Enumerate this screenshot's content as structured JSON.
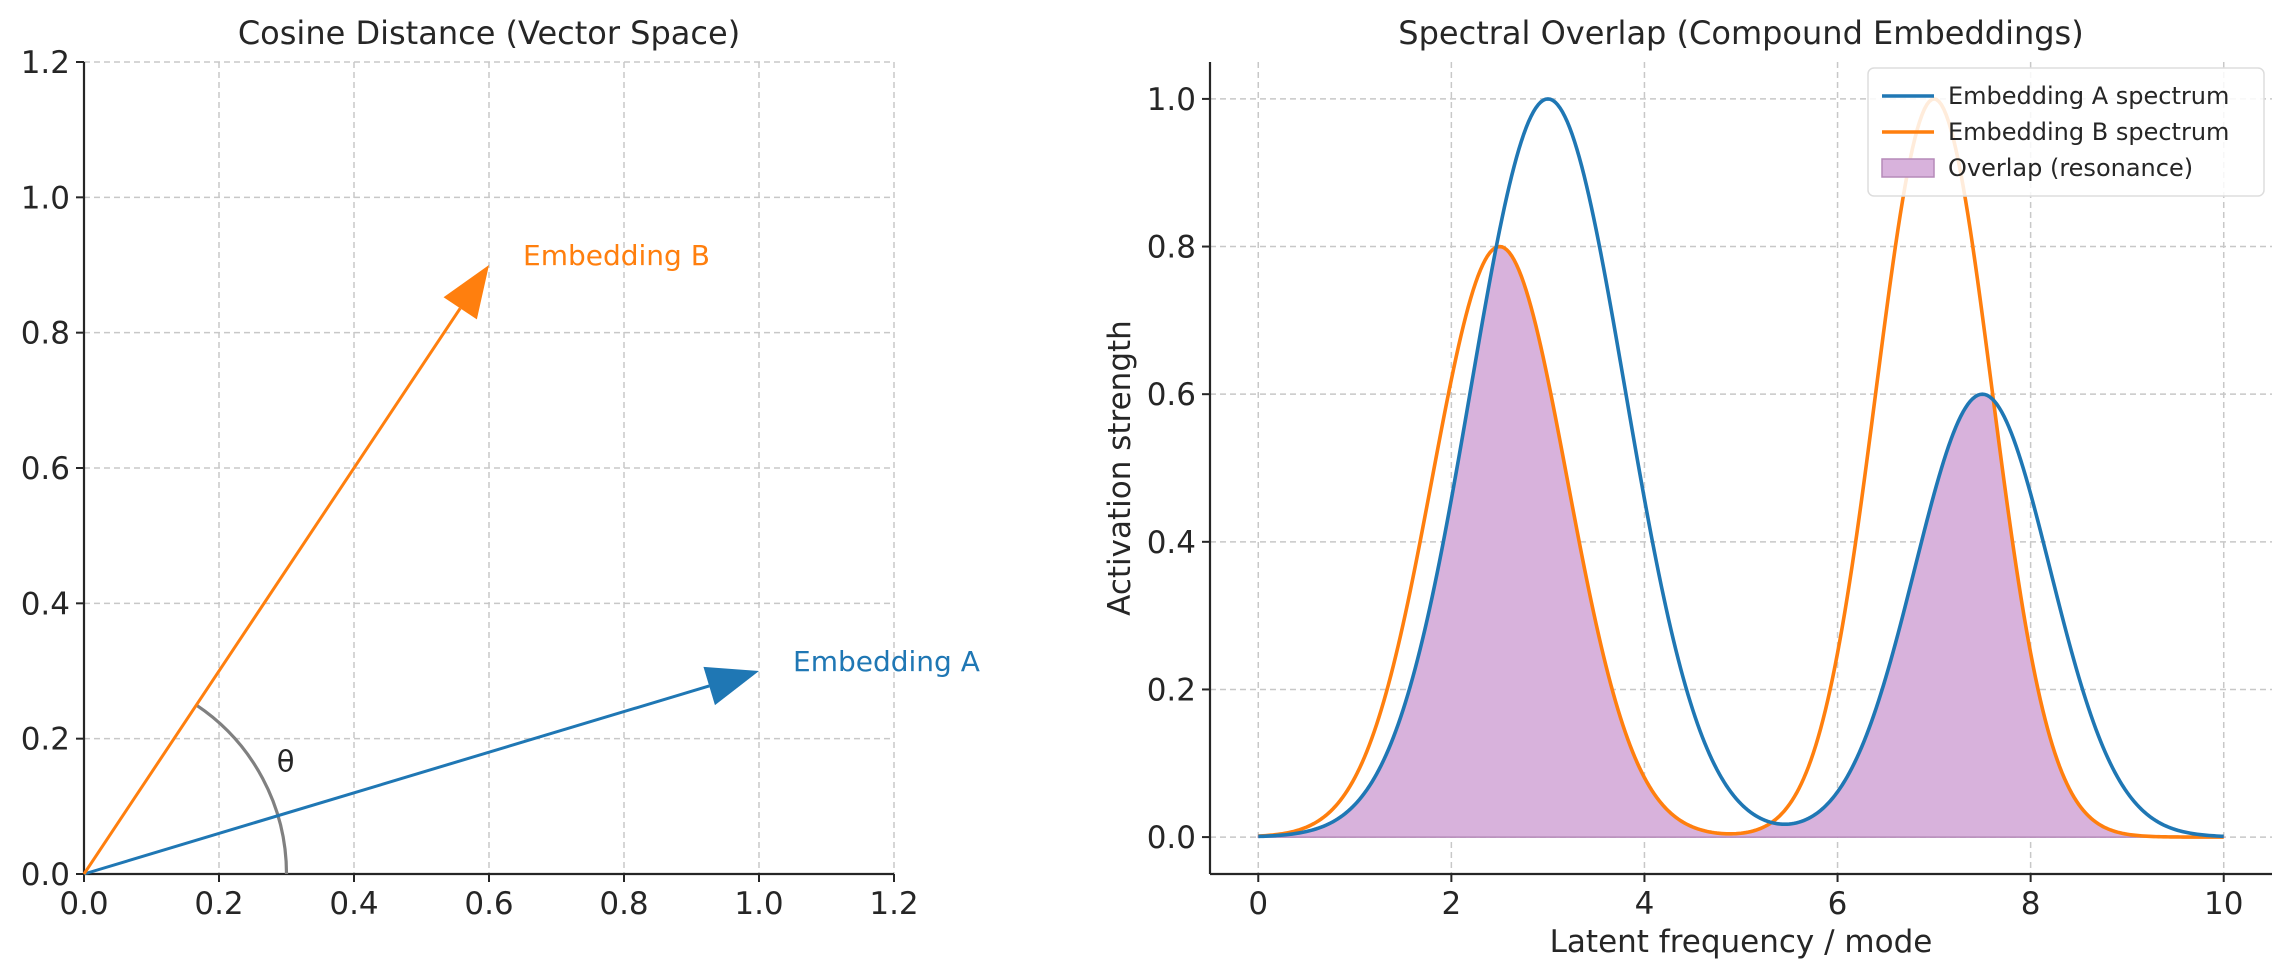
{
  "chart_data": [
    {
      "type": "line",
      "title": "Cosine Distance (Vector Space)",
      "xlabel": "",
      "ylabel": "",
      "xlim": [
        0,
        1.2
      ],
      "ylim": [
        0,
        1.2
      ],
      "xticks": [
        "0.0",
        "0.2",
        "0.4",
        "0.6",
        "0.8",
        "1.0",
        "1.2"
      ],
      "yticks": [
        "0.0",
        "0.2",
        "0.4",
        "0.6",
        "0.8",
        "1.0",
        "1.2"
      ],
      "grid": true,
      "vectors": [
        {
          "label": "Embedding A",
          "x": 1.0,
          "y": 0.3,
          "color": "#1f77b4"
        },
        {
          "label": "Embedding B",
          "x": 0.6,
          "y": 0.9,
          "color": "#ff7f0e"
        }
      ],
      "angle_arc": {
        "label": "θ",
        "radius": 0.3,
        "color": "#808080"
      }
    },
    {
      "type": "area",
      "title": "Spectral Overlap (Compound Embeddings)",
      "xlabel": "Latent frequency / mode",
      "ylabel": "Activation strength",
      "xlim": [
        -0.5,
        10.5
      ],
      "ylim": [
        -0.05,
        1.05
      ],
      "xticks": [
        "0",
        "2",
        "4",
        "6",
        "8",
        "10"
      ],
      "yticks": [
        "0.0",
        "0.2",
        "0.4",
        "0.6",
        "0.8",
        "1.0"
      ],
      "grid": true,
      "legend_position": "top-right",
      "series": [
        {
          "name": "Embedding A spectrum",
          "color": "#1f77b4",
          "kind": "line",
          "components": [
            {
              "amplitude": 1.0,
              "center": 3.0,
              "width": 0.8
            },
            {
              "amplitude": 0.6,
              "center": 7.5,
              "width": 0.7
            }
          ]
        },
        {
          "name": "Embedding B spectrum",
          "color": "#ff7f0e",
          "kind": "line",
          "components": [
            {
              "amplitude": 0.8,
              "center": 2.5,
              "width": 0.7
            },
            {
              "amplitude": 1.0,
              "center": 7.0,
              "width": 0.6
            }
          ]
        },
        {
          "name": "Overlap (resonance)",
          "color": "#d8b2dc",
          "edge_color": "#b58ab9",
          "kind": "fill_min"
        }
      ]
    }
  ]
}
